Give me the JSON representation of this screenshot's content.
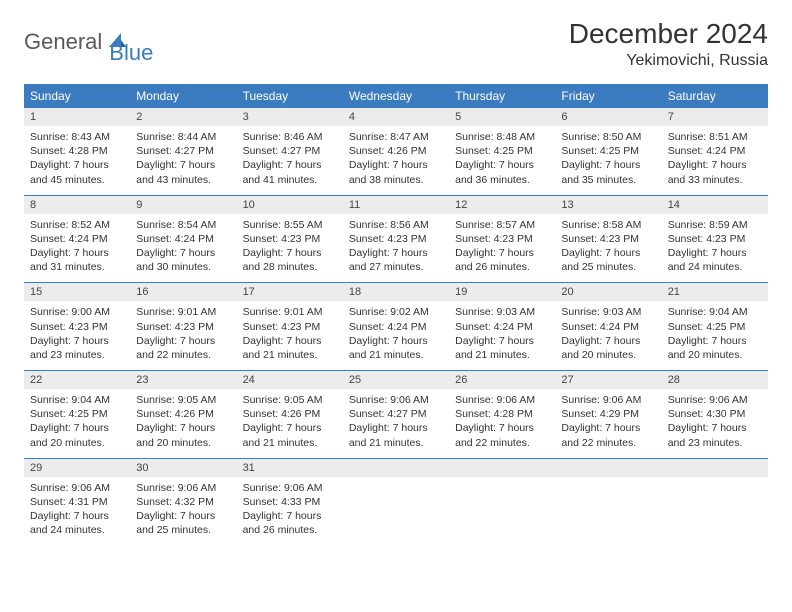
{
  "logo": {
    "text1": "General",
    "text2": "Blue"
  },
  "title": {
    "month": "December 2024",
    "location": "Yekimovichi, Russia"
  },
  "colors": {
    "header_bg": "#3b7bbf",
    "header_text": "#ffffff",
    "daynum_bg": "#ececec",
    "rule": "#3b7bbf",
    "body_text": "#333333"
  },
  "day_headers": [
    "Sunday",
    "Monday",
    "Tuesday",
    "Wednesday",
    "Thursday",
    "Friday",
    "Saturday"
  ],
  "weeks": [
    [
      {
        "n": "1",
        "sunrise": "Sunrise: 8:43 AM",
        "sunset": "Sunset: 4:28 PM",
        "daylight": "Daylight: 7 hours and 45 minutes."
      },
      {
        "n": "2",
        "sunrise": "Sunrise: 8:44 AM",
        "sunset": "Sunset: 4:27 PM",
        "daylight": "Daylight: 7 hours and 43 minutes."
      },
      {
        "n": "3",
        "sunrise": "Sunrise: 8:46 AM",
        "sunset": "Sunset: 4:27 PM",
        "daylight": "Daylight: 7 hours and 41 minutes."
      },
      {
        "n": "4",
        "sunrise": "Sunrise: 8:47 AM",
        "sunset": "Sunset: 4:26 PM",
        "daylight": "Daylight: 7 hours and 38 minutes."
      },
      {
        "n": "5",
        "sunrise": "Sunrise: 8:48 AM",
        "sunset": "Sunset: 4:25 PM",
        "daylight": "Daylight: 7 hours and 36 minutes."
      },
      {
        "n": "6",
        "sunrise": "Sunrise: 8:50 AM",
        "sunset": "Sunset: 4:25 PM",
        "daylight": "Daylight: 7 hours and 35 minutes."
      },
      {
        "n": "7",
        "sunrise": "Sunrise: 8:51 AM",
        "sunset": "Sunset: 4:24 PM",
        "daylight": "Daylight: 7 hours and 33 minutes."
      }
    ],
    [
      {
        "n": "8",
        "sunrise": "Sunrise: 8:52 AM",
        "sunset": "Sunset: 4:24 PM",
        "daylight": "Daylight: 7 hours and 31 minutes."
      },
      {
        "n": "9",
        "sunrise": "Sunrise: 8:54 AM",
        "sunset": "Sunset: 4:24 PM",
        "daylight": "Daylight: 7 hours and 30 minutes."
      },
      {
        "n": "10",
        "sunrise": "Sunrise: 8:55 AM",
        "sunset": "Sunset: 4:23 PM",
        "daylight": "Daylight: 7 hours and 28 minutes."
      },
      {
        "n": "11",
        "sunrise": "Sunrise: 8:56 AM",
        "sunset": "Sunset: 4:23 PM",
        "daylight": "Daylight: 7 hours and 27 minutes."
      },
      {
        "n": "12",
        "sunrise": "Sunrise: 8:57 AM",
        "sunset": "Sunset: 4:23 PM",
        "daylight": "Daylight: 7 hours and 26 minutes."
      },
      {
        "n": "13",
        "sunrise": "Sunrise: 8:58 AM",
        "sunset": "Sunset: 4:23 PM",
        "daylight": "Daylight: 7 hours and 25 minutes."
      },
      {
        "n": "14",
        "sunrise": "Sunrise: 8:59 AM",
        "sunset": "Sunset: 4:23 PM",
        "daylight": "Daylight: 7 hours and 24 minutes."
      }
    ],
    [
      {
        "n": "15",
        "sunrise": "Sunrise: 9:00 AM",
        "sunset": "Sunset: 4:23 PM",
        "daylight": "Daylight: 7 hours and 23 minutes."
      },
      {
        "n": "16",
        "sunrise": "Sunrise: 9:01 AM",
        "sunset": "Sunset: 4:23 PM",
        "daylight": "Daylight: 7 hours and 22 minutes."
      },
      {
        "n": "17",
        "sunrise": "Sunrise: 9:01 AM",
        "sunset": "Sunset: 4:23 PM",
        "daylight": "Daylight: 7 hours and 21 minutes."
      },
      {
        "n": "18",
        "sunrise": "Sunrise: 9:02 AM",
        "sunset": "Sunset: 4:24 PM",
        "daylight": "Daylight: 7 hours and 21 minutes."
      },
      {
        "n": "19",
        "sunrise": "Sunrise: 9:03 AM",
        "sunset": "Sunset: 4:24 PM",
        "daylight": "Daylight: 7 hours and 21 minutes."
      },
      {
        "n": "20",
        "sunrise": "Sunrise: 9:03 AM",
        "sunset": "Sunset: 4:24 PM",
        "daylight": "Daylight: 7 hours and 20 minutes."
      },
      {
        "n": "21",
        "sunrise": "Sunrise: 9:04 AM",
        "sunset": "Sunset: 4:25 PM",
        "daylight": "Daylight: 7 hours and 20 minutes."
      }
    ],
    [
      {
        "n": "22",
        "sunrise": "Sunrise: 9:04 AM",
        "sunset": "Sunset: 4:25 PM",
        "daylight": "Daylight: 7 hours and 20 minutes."
      },
      {
        "n": "23",
        "sunrise": "Sunrise: 9:05 AM",
        "sunset": "Sunset: 4:26 PM",
        "daylight": "Daylight: 7 hours and 20 minutes."
      },
      {
        "n": "24",
        "sunrise": "Sunrise: 9:05 AM",
        "sunset": "Sunset: 4:26 PM",
        "daylight": "Daylight: 7 hours and 21 minutes."
      },
      {
        "n": "25",
        "sunrise": "Sunrise: 9:06 AM",
        "sunset": "Sunset: 4:27 PM",
        "daylight": "Daylight: 7 hours and 21 minutes."
      },
      {
        "n": "26",
        "sunrise": "Sunrise: 9:06 AM",
        "sunset": "Sunset: 4:28 PM",
        "daylight": "Daylight: 7 hours and 22 minutes."
      },
      {
        "n": "27",
        "sunrise": "Sunrise: 9:06 AM",
        "sunset": "Sunset: 4:29 PM",
        "daylight": "Daylight: 7 hours and 22 minutes."
      },
      {
        "n": "28",
        "sunrise": "Sunrise: 9:06 AM",
        "sunset": "Sunset: 4:30 PM",
        "daylight": "Daylight: 7 hours and 23 minutes."
      }
    ],
    [
      {
        "n": "29",
        "sunrise": "Sunrise: 9:06 AM",
        "sunset": "Sunset: 4:31 PM",
        "daylight": "Daylight: 7 hours and 24 minutes."
      },
      {
        "n": "30",
        "sunrise": "Sunrise: 9:06 AM",
        "sunset": "Sunset: 4:32 PM",
        "daylight": "Daylight: 7 hours and 25 minutes."
      },
      {
        "n": "31",
        "sunrise": "Sunrise: 9:06 AM",
        "sunset": "Sunset: 4:33 PM",
        "daylight": "Daylight: 7 hours and 26 minutes."
      },
      null,
      null,
      null,
      null
    ]
  ]
}
